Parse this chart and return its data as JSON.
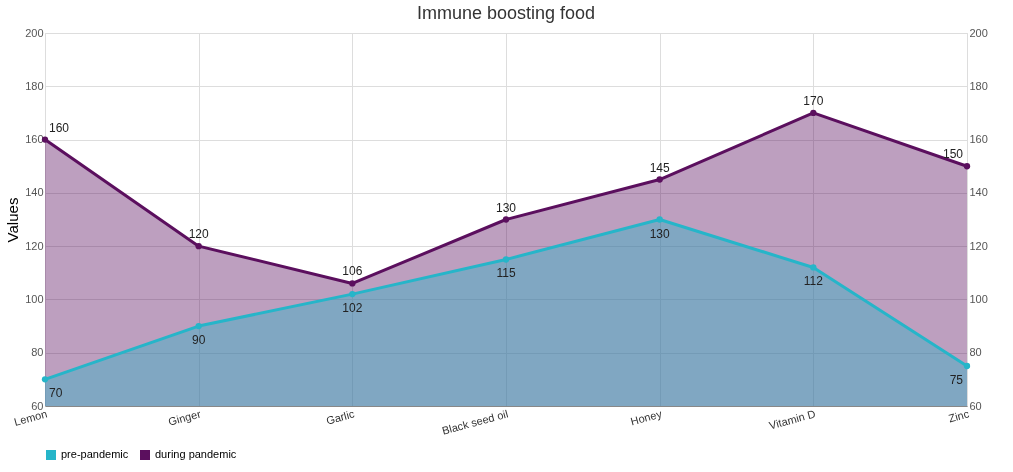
{
  "chart_data": {
    "type": "area",
    "title": "Immune boosting food",
    "ylabel": "Values",
    "categories": [
      "Lemon",
      "Ginger",
      "Garlic",
      "Black seed oil",
      "Honey",
      "Vitamin D",
      "Zinc"
    ],
    "series": [
      {
        "name": "pre-pandemic",
        "color": "#26b5c9",
        "values": [
          70,
          90,
          102,
          115,
          130,
          112,
          75
        ]
      },
      {
        "name": "during pandemic",
        "color": "#5b0f5e",
        "values": [
          160,
          120,
          106,
          130,
          145,
          170,
          150
        ]
      }
    ],
    "ylim": [
      60,
      200
    ],
    "yticks": [
      60,
      80,
      100,
      120,
      140,
      160,
      180,
      200
    ],
    "y2lim": [
      60,
      200
    ],
    "y2ticks": [
      60,
      80,
      100,
      120,
      140,
      160,
      180,
      200
    ],
    "grid": true,
    "legend": "bottom left",
    "marker": "circle",
    "data_labels": true
  }
}
